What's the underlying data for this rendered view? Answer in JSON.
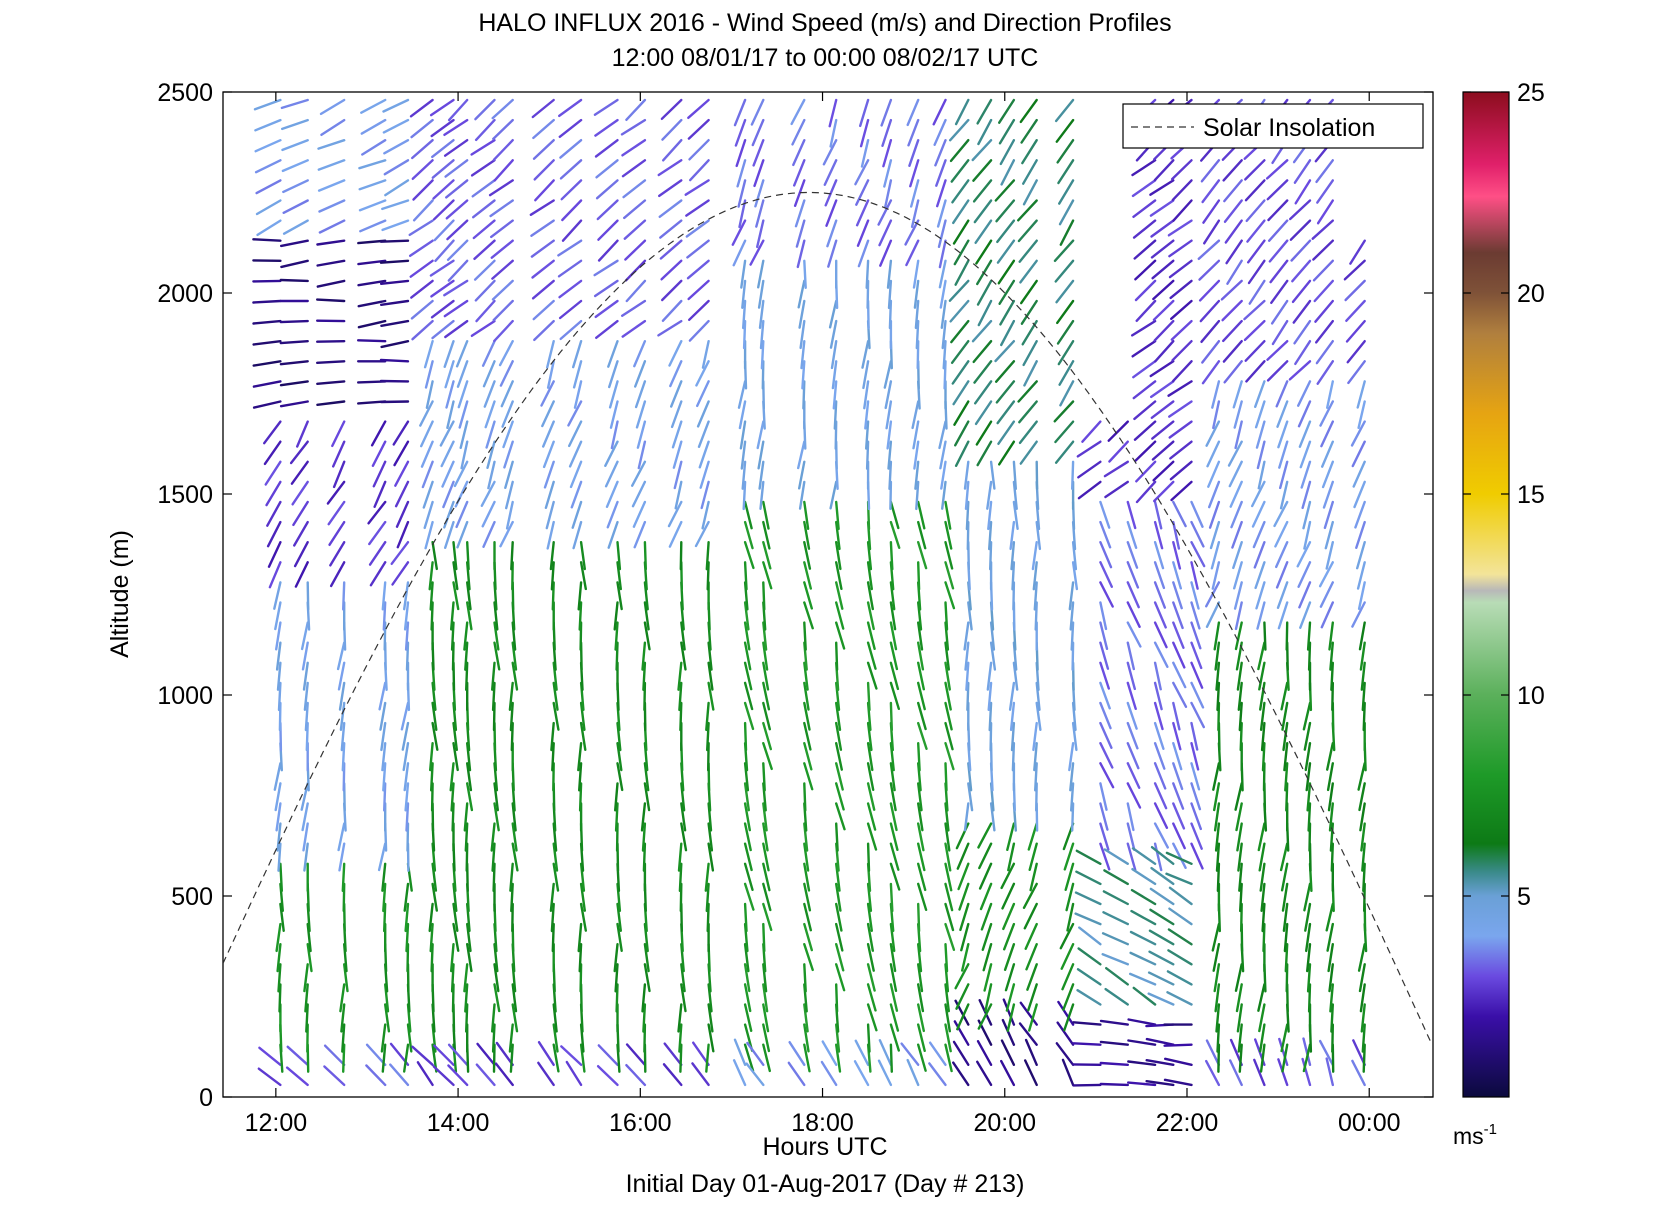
{
  "chart_data": {
    "type": "wind-barb-profile",
    "title": "HALO INFLUX 2016 - Wind Speed (m/s) and Direction Profiles",
    "subtitle": "12:00 08/01/17 to 00:00 08/02/17  UTC",
    "xlabel": "Hours UTC",
    "footer": "Initial Day 01-Aug-2017 (Day # 213)",
    "ylabel": "Altitude (m)",
    "xlim": [
      11.42,
      24.7
    ],
    "ylim": [
      0,
      2500
    ],
    "x_ticks": [
      {
        "value": 12,
        "label": "12:00"
      },
      {
        "value": 14,
        "label": "14:00"
      },
      {
        "value": 16,
        "label": "16:00"
      },
      {
        "value": 18,
        "label": "18:00"
      },
      {
        "value": 20,
        "label": "20:00"
      },
      {
        "value": 22,
        "label": "22:00"
      },
      {
        "value": 24,
        "label": "00:00"
      }
    ],
    "y_ticks": [
      {
        "value": 0,
        "label": "0"
      },
      {
        "value": 500,
        "label": "500"
      },
      {
        "value": 1000,
        "label": "1000"
      },
      {
        "value": 1500,
        "label": "1500"
      },
      {
        "value": 2000,
        "label": "2000"
      },
      {
        "value": 2500,
        "label": "2500"
      }
    ],
    "legend": {
      "label": "Solar Insolation",
      "style": "dashed",
      "position": "top-right"
    },
    "solar_insolation": {
      "peak_hour": 17.85,
      "peak_altitude": 2250,
      "half_width_hours": 7.1
    },
    "colorbar": {
      "range": [
        0,
        25
      ],
      "ticks": [
        {
          "value": 5,
          "label": "5"
        },
        {
          "value": 10,
          "label": "10"
        },
        {
          "value": 15,
          "label": "15"
        },
        {
          "value": 20,
          "label": "20"
        },
        {
          "value": 25,
          "label": "25"
        }
      ],
      "unit_base": "ms",
      "unit_exp": "-1",
      "stops": [
        {
          "value": 0,
          "color": "#0b0a3d"
        },
        {
          "value": 2,
          "color": "#3a0fa8"
        },
        {
          "value": 3,
          "color": "#6a4ae0"
        },
        {
          "value": 4,
          "color": "#7aa6ee"
        },
        {
          "value": 5,
          "color": "#6aa0d6"
        },
        {
          "value": 5.6,
          "color": "#3a8a8a"
        },
        {
          "value": 6.3,
          "color": "#0d7a16"
        },
        {
          "value": 8,
          "color": "#1e9a28"
        },
        {
          "value": 10,
          "color": "#5bb05b"
        },
        {
          "value": 12.3,
          "color": "#b8dcb6"
        },
        {
          "value": 12.6,
          "color": "#b8b8b8"
        },
        {
          "value": 13,
          "color": "#f3e49a"
        },
        {
          "value": 15,
          "color": "#f0cc00"
        },
        {
          "value": 17,
          "color": "#e6a412"
        },
        {
          "value": 19,
          "color": "#b07f3e"
        },
        {
          "value": 20,
          "color": "#7f5238"
        },
        {
          "value": 21,
          "color": "#6b3b32"
        },
        {
          "value": 22.4,
          "color": "#ff4f86"
        },
        {
          "value": 23.2,
          "color": "#e0206a"
        },
        {
          "value": 25,
          "color": "#8c0d1e"
        }
      ]
    },
    "barb_times": [
      12.05,
      12.35,
      12.75,
      13.2,
      13.45,
      13.72,
      13.95,
      14.1,
      14.4,
      14.6,
      15.05,
      15.35,
      15.75,
      16.05,
      16.45,
      16.75,
      17.15,
      17.35,
      17.8,
      18.15,
      18.5,
      18.75,
      19.05,
      19.35,
      19.6,
      19.85,
      20.1,
      20.35,
      20.75,
      21.05,
      21.35,
      21.65,
      21.85,
      22.05,
      22.35,
      22.6,
      22.85,
      23.1,
      23.35,
      23.6,
      23.95
    ],
    "barb_altitudes": [
      30,
      80,
      130,
      180,
      230,
      280,
      330,
      380,
      430,
      480,
      530,
      580,
      630,
      680,
      730,
      780,
      830,
      880,
      930,
      980,
      1030,
      1080,
      1130,
      1180,
      1230,
      1280,
      1330,
      1380,
      1430,
      1480,
      1530,
      1580,
      1630,
      1680,
      1730,
      1780,
      1830,
      1880,
      1930,
      1980,
      2030,
      2080,
      2130,
      2180,
      2230,
      2280,
      2330,
      2380,
      2430,
      2480
    ],
    "profiles": [
      {
        "from": 12,
        "to": 13.6,
        "layers": [
          {
            "top": 100,
            "dir": 315,
            "speed": 3.2
          },
          {
            "top": 600,
            "dir": 180,
            "speed": 7.5
          },
          {
            "top": 1300,
            "dir": 185,
            "speed": 4.3
          },
          {
            "top": 1700,
            "dir": 210,
            "speed": 2.6
          },
          {
            "top": 2150,
            "dir": 265,
            "speed": 1.2
          },
          {
            "top": 2500,
            "dir": 245,
            "speed": 4.0
          }
        ]
      },
      {
        "from": 13.6,
        "to": 16.9,
        "layers": [
          {
            "top": 100,
            "dir": 320,
            "speed": 2.8
          },
          {
            "top": 1400,
            "dir": 178,
            "speed": 7.2
          },
          {
            "top": 1900,
            "dir": 200,
            "speed": 4.2
          },
          {
            "top": 2500,
            "dir": 230,
            "speed": 3.2
          }
        ]
      },
      {
        "from": 16.9,
        "to": 19.5,
        "layers": [
          {
            "top": 100,
            "dir": 330,
            "speed": 4.0
          },
          {
            "top": 1500,
            "dir": 170,
            "speed": 7.8
          },
          {
            "top": 2100,
            "dir": 185,
            "speed": 4.5
          },
          {
            "top": 2500,
            "dir": 200,
            "speed": 3.4
          }
        ]
      },
      {
        "from": 19.5,
        "to": 20.9,
        "layers": [
          {
            "top": 200,
            "dir": 330,
            "speed": 1.4
          },
          {
            "top": 700,
            "dir": 200,
            "speed": 7.4
          },
          {
            "top": 1600,
            "dir": 180,
            "speed": 4.6
          },
          {
            "top": 2500,
            "dir": 215,
            "speed": 5.8
          }
        ]
      },
      {
        "from": 20.9,
        "to": 22.3,
        "layers": [
          {
            "top": 200,
            "dir": 275,
            "speed": 1.6
          },
          {
            "top": 600,
            "dir": 300,
            "speed": 5.5
          },
          {
            "top": 1500,
            "dir": 160,
            "speed": 3.4
          },
          {
            "top": 2500,
            "dir": 230,
            "speed": 2.6
          }
        ]
      },
      {
        "from": 22.3,
        "to": 24.1,
        "layers": [
          {
            "top": 100,
            "dir": 340,
            "speed": 3.1
          },
          {
            "top": 1200,
            "dir": 185,
            "speed": 7.0
          },
          {
            "top": 1800,
            "dir": 200,
            "speed": 4.0
          },
          {
            "top": 2500,
            "dir": 220,
            "speed": 3.0
          }
        ]
      }
    ],
    "missing_regions": [
      {
        "from": 21.05,
        "to": 21.55,
        "alt_from": 1720,
        "alt_to": 2500
      },
      {
        "from": 23.75,
        "to": 24.2,
        "alt_from": 2180,
        "alt_to": 2500
      }
    ]
  }
}
